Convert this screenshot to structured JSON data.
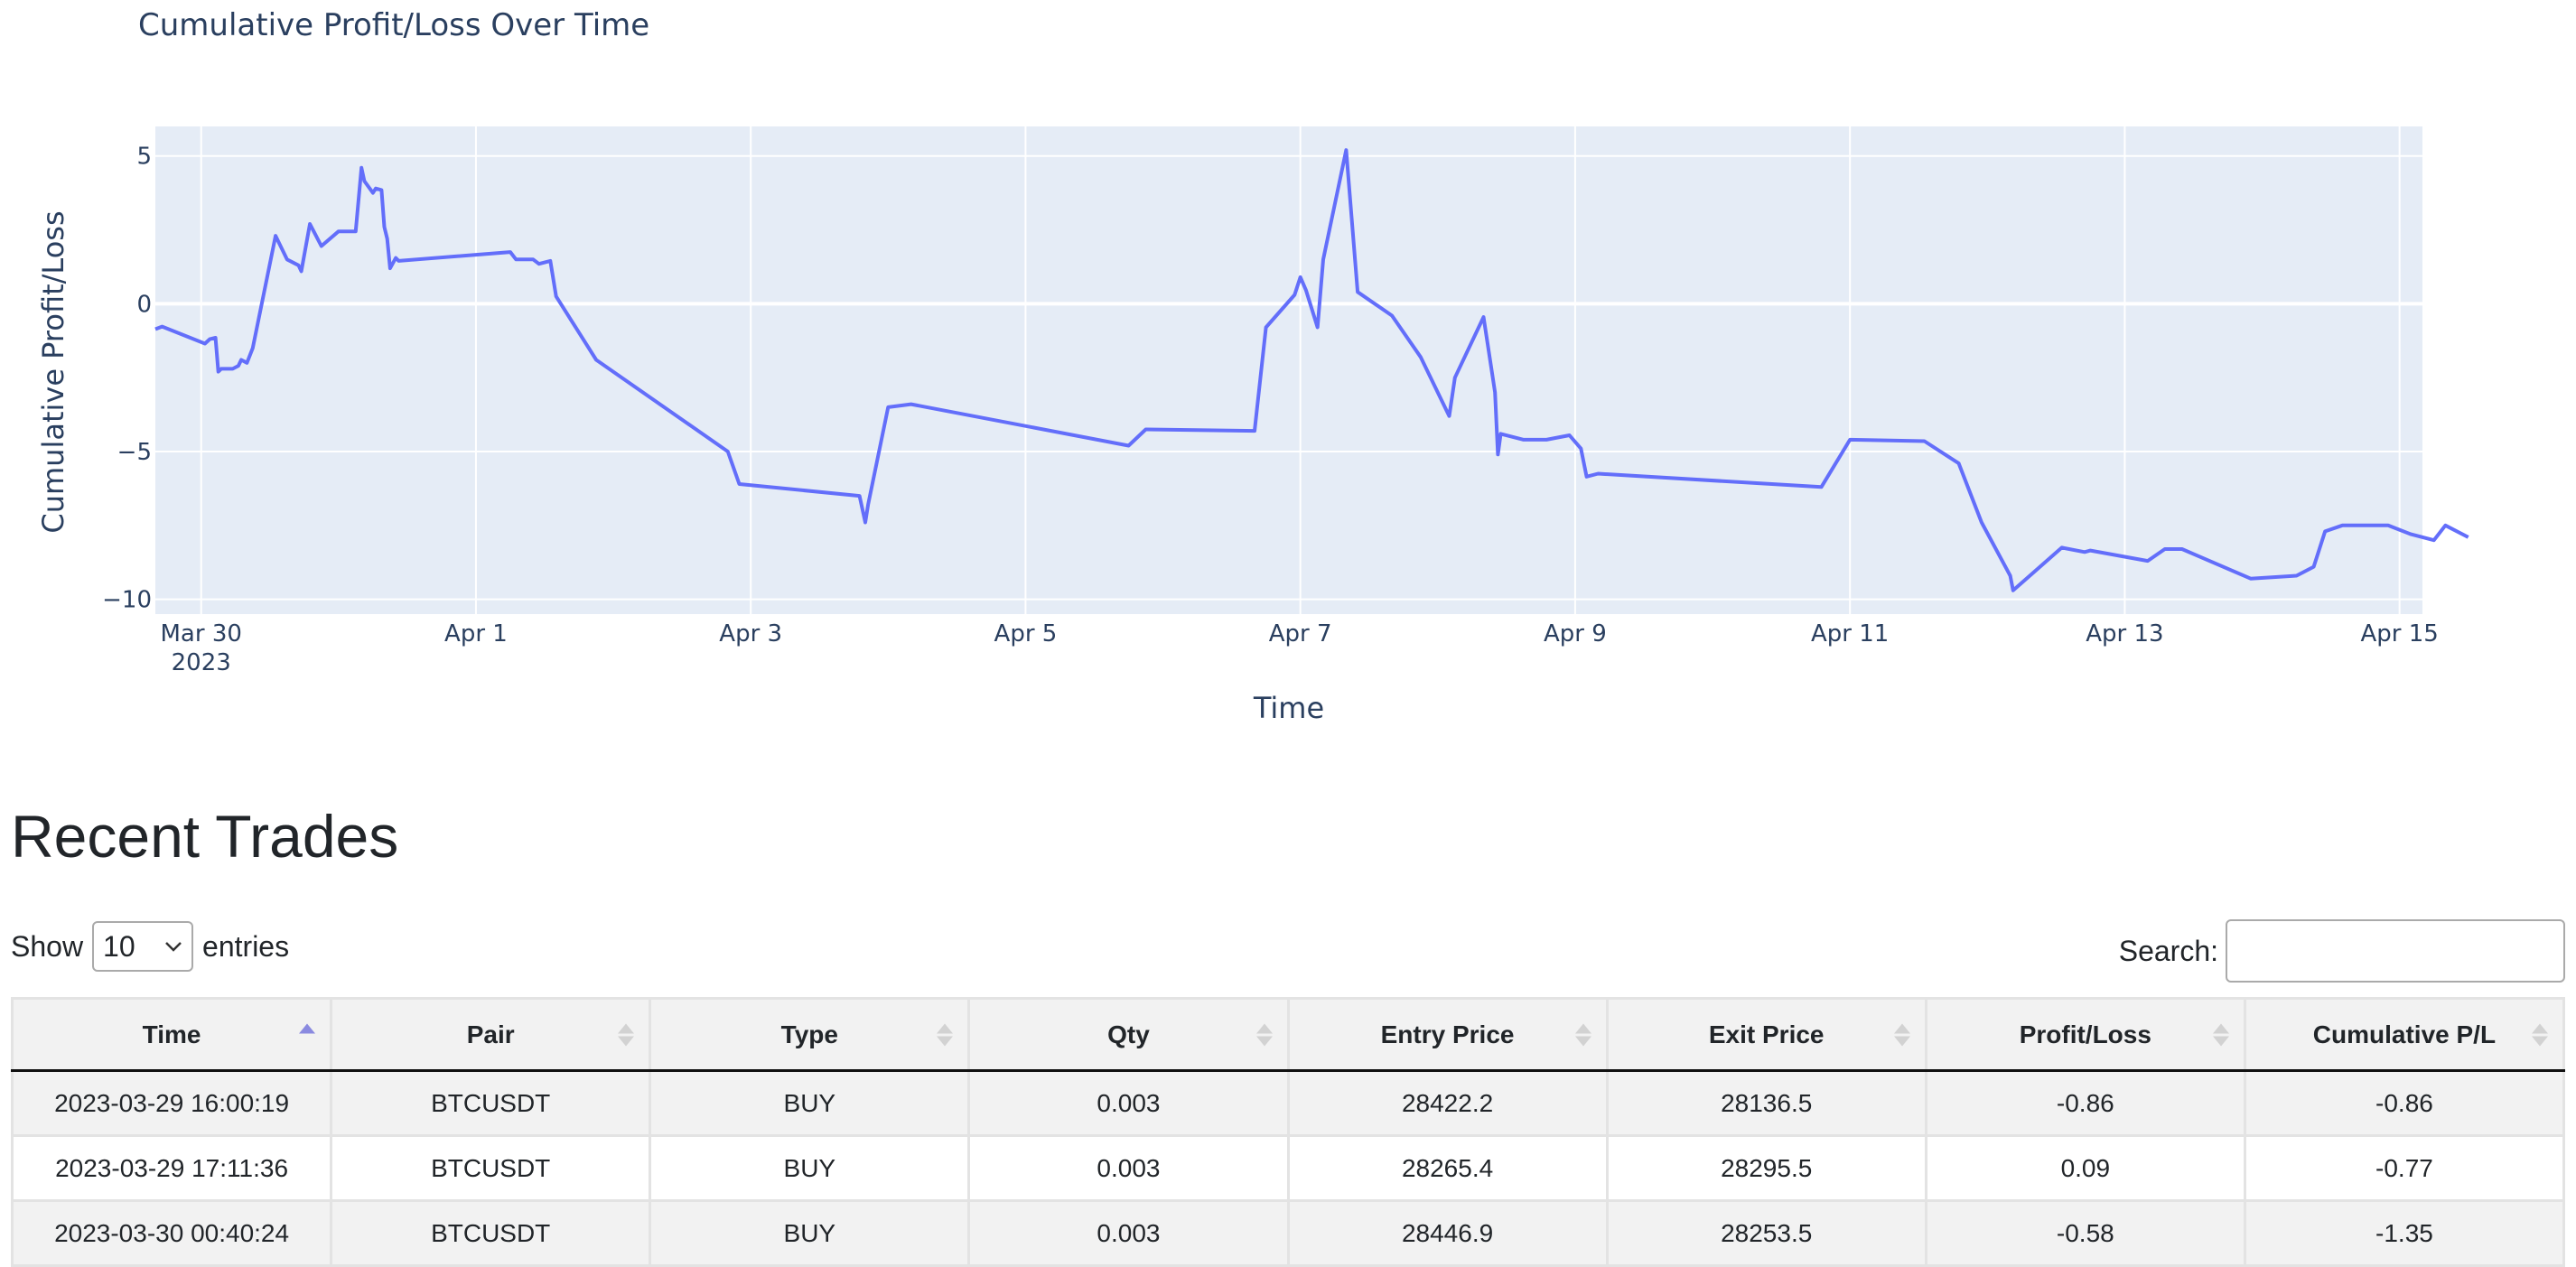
{
  "chart_data": {
    "type": "line",
    "title": "Cumulative Profit/Loss Over Time",
    "xlabel": "Time",
    "ylabel": "Cumulative Profit/Loss",
    "x_tick_labels": [
      "Mar 30\n2023",
      "Apr 1",
      "Apr 3",
      "Apr 5",
      "Apr 7",
      "Apr 9",
      "Apr 11",
      "Apr 13",
      "Apr 15"
    ],
    "y_tick_labels": [
      "5",
      "0",
      "−5",
      "−10"
    ],
    "xlim": [
      "2023-03-29 16:00",
      "2023-04-15 04:00"
    ],
    "ylim": [
      -10.5,
      6
    ],
    "grid": true,
    "line_color": "#636efa",
    "plot_background": "#e5ecf6",
    "series": [
      {
        "points": [
          [
            "2023-03-29 16:00",
            -0.86
          ],
          [
            "2023-03-29 17:11",
            -0.77
          ],
          [
            "2023-03-30 00:40",
            -1.35
          ],
          [
            "2023-03-30 01:30",
            -1.2
          ],
          [
            "2023-03-30 02:30",
            -1.15
          ],
          [
            "2023-03-30 03:00",
            -2.3
          ],
          [
            "2023-03-30 03:30",
            -2.2
          ],
          [
            "2023-03-30 05:30",
            -2.2
          ],
          [
            "2023-03-30 06:30",
            -2.1
          ],
          [
            "2023-03-30 07:00",
            -1.9
          ],
          [
            "2023-03-30 08:00",
            -2.0
          ],
          [
            "2023-03-30 09:00",
            -1.5
          ],
          [
            "2023-03-30 13:00",
            2.3
          ],
          [
            "2023-03-30 15:00",
            1.5
          ],
          [
            "2023-03-30 17:00",
            1.3
          ],
          [
            "2023-03-30 17:30",
            1.1
          ],
          [
            "2023-03-30 19:00",
            2.7
          ],
          [
            "2023-03-30 21:00",
            1.95
          ],
          [
            "2023-03-31 00:00",
            2.45
          ],
          [
            "2023-03-31 03:00",
            2.45
          ],
          [
            "2023-03-31 04:00",
            4.6
          ],
          [
            "2023-03-31 04:30",
            4.15
          ],
          [
            "2023-03-31 06:00",
            3.75
          ],
          [
            "2023-03-31 06:30",
            3.9
          ],
          [
            "2023-03-31 07:30",
            3.85
          ],
          [
            "2023-03-31 08:00",
            2.6
          ],
          [
            "2023-03-31 08:30",
            2.2
          ],
          [
            "2023-03-31 09:00",
            1.2
          ],
          [
            "2023-03-31 10:00",
            1.55
          ],
          [
            "2023-03-31 10:30",
            1.45
          ],
          [
            "2023-04-01 06:00",
            1.75
          ],
          [
            "2023-04-01 07:00",
            1.5
          ],
          [
            "2023-04-01 10:00",
            1.5
          ],
          [
            "2023-04-01 11:00",
            1.35
          ],
          [
            "2023-04-01 13:00",
            1.45
          ],
          [
            "2023-04-01 14:00",
            0.25
          ],
          [
            "2023-04-01 21:00",
            -1.9
          ],
          [
            "2023-04-02 20:00",
            -5.0
          ],
          [
            "2023-04-02 22:00",
            -6.1
          ],
          [
            "2023-04-03 19:00",
            -6.5
          ],
          [
            "2023-04-03 20:00",
            -7.4
          ],
          [
            "2023-04-03 20:30",
            -6.8
          ],
          [
            "2023-04-04 00:00",
            -3.5
          ],
          [
            "2023-04-04 04:00",
            -3.4
          ],
          [
            "2023-04-05 18:00",
            -4.8
          ],
          [
            "2023-04-05 21:00",
            -4.25
          ],
          [
            "2023-04-06 16:00",
            -4.3
          ],
          [
            "2023-04-06 18:00",
            -0.8
          ],
          [
            "2023-04-06 23:00",
            0.3
          ],
          [
            "2023-04-07 00:00",
            0.9
          ],
          [
            "2023-04-07 01:00",
            0.45
          ],
          [
            "2023-04-07 03:00",
            -0.8
          ],
          [
            "2023-04-07 04:00",
            1.5
          ],
          [
            "2023-04-07 08:00",
            5.2
          ],
          [
            "2023-04-07 10:00",
            0.4
          ],
          [
            "2023-04-07 16:00",
            -0.4
          ],
          [
            "2023-04-07 21:00",
            -1.8
          ],
          [
            "2023-04-08 02:00",
            -3.8
          ],
          [
            "2023-04-08 03:00",
            -2.5
          ],
          [
            "2023-04-08 08:00",
            -0.45
          ],
          [
            "2023-04-08 10:00",
            -3.0
          ],
          [
            "2023-04-08 10:30",
            -5.1
          ],
          [
            "2023-04-08 11:00",
            -4.4
          ],
          [
            "2023-04-08 15:00",
            -4.6
          ],
          [
            "2023-04-08 19:00",
            -4.6
          ],
          [
            "2023-04-08 23:00",
            -4.45
          ],
          [
            "2023-04-09 01:00",
            -4.9
          ],
          [
            "2023-04-09 02:00",
            -5.85
          ],
          [
            "2023-04-09 04:00",
            -5.75
          ],
          [
            "2023-04-10 19:00",
            -6.2
          ],
          [
            "2023-04-11 00:00",
            -4.6
          ],
          [
            "2023-04-11 13:00",
            -4.65
          ],
          [
            "2023-04-11 19:00",
            -5.4
          ],
          [
            "2023-04-11 23:00",
            -7.4
          ],
          [
            "2023-04-12 04:00",
            -9.2
          ],
          [
            "2023-04-12 04:30",
            -9.7
          ],
          [
            "2023-04-12 13:00",
            -8.25
          ],
          [
            "2023-04-12 17:00",
            -8.4
          ],
          [
            "2023-04-12 18:00",
            -8.35
          ],
          [
            "2023-04-13 04:00",
            -8.7
          ],
          [
            "2023-04-13 07:00",
            -8.3
          ],
          [
            "2023-04-13 10:00",
            -8.3
          ],
          [
            "2023-04-13 13:00",
            -8.55
          ],
          [
            "2023-04-13 22:00",
            -9.3
          ],
          [
            "2023-04-14 06:00",
            -9.2
          ],
          [
            "2023-04-14 09:00",
            -8.9
          ],
          [
            "2023-04-14 11:00",
            -7.7
          ],
          [
            "2023-04-14 14:00",
            -7.5
          ],
          [
            "2023-04-14 22:00",
            -7.5
          ],
          [
            "2023-04-15 02:00",
            -7.8
          ],
          [
            "2023-04-15 06:00",
            -8.0
          ],
          [
            "2023-04-15 08:00",
            -7.5
          ],
          [
            "2023-04-15 12:00",
            -7.9
          ]
        ]
      }
    ]
  },
  "table": {
    "title": "Recent Trades",
    "show_label": "Show",
    "entries_label": "entries",
    "page_length": "10",
    "search_label": "Search:",
    "search_value": "",
    "headers": [
      "Time",
      "Pair",
      "Type",
      "Qty",
      "Entry Price",
      "Exit Price",
      "Profit/Loss",
      "Cumulative P/L"
    ],
    "sorted_column": "Time",
    "rows": [
      [
        "2023-03-29 16:00:19",
        "BTCUSDT",
        "BUY",
        "0.003",
        "28422.2",
        "28136.5",
        "-0.86",
        "-0.86"
      ],
      [
        "2023-03-29 17:11:36",
        "BTCUSDT",
        "BUY",
        "0.003",
        "28265.4",
        "28295.5",
        "0.09",
        "-0.77"
      ],
      [
        "2023-03-30 00:40:24",
        "BTCUSDT",
        "BUY",
        "0.003",
        "28446.9",
        "28253.5",
        "-0.58",
        "-1.35"
      ]
    ]
  }
}
